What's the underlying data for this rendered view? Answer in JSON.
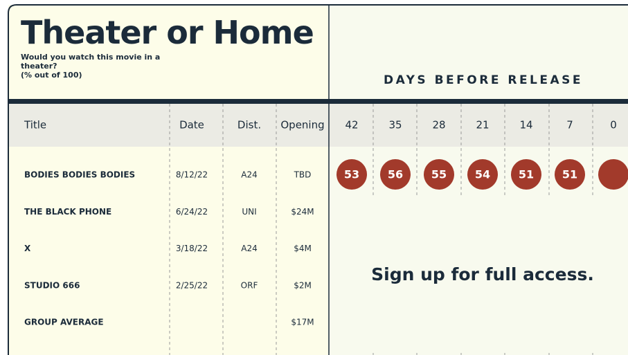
{
  "header": {
    "title": "Theater or Home",
    "subtitle": "Would you watch this movie in a theater?",
    "unit": "(% out of 100)",
    "days_label": "DAYS BEFORE RELEASE"
  },
  "table": {
    "columns": [
      "Title",
      "Date",
      "Dist.",
      "Opening"
    ],
    "days": [
      42,
      35,
      28,
      21,
      14,
      7,
      0
    ],
    "rows": [
      {
        "cells": [
          "BODIES BODIES BODIES",
          "8/12/22",
          "A24",
          "TBD"
        ],
        "scores": [
          53,
          56,
          55,
          54,
          51,
          51,
          null
        ]
      },
      {
        "cells": [
          "THE BLACK PHONE",
          "6/24/22",
          "UNI",
          "$24M"
        ]
      },
      {
        "cells": [
          "X",
          "3/18/22",
          "A24",
          "$4M"
        ]
      },
      {
        "cells": [
          "STUDIO 666",
          "2/25/22",
          "ORF",
          "$2M"
        ]
      },
      {
        "cells": [
          "GROUP AVERAGE",
          null,
          null,
          "$17M"
        ]
      }
    ]
  },
  "overlay": {
    "text": "Sign up for full access."
  }
}
